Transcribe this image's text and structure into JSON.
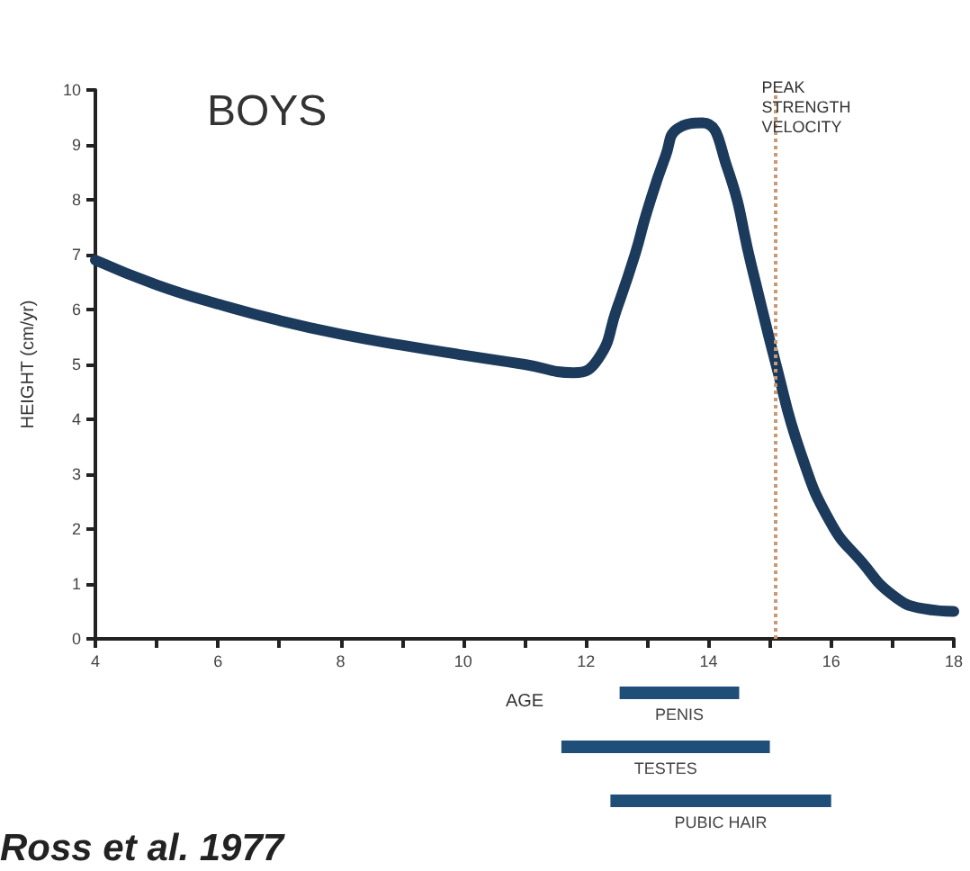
{
  "chart_data": [
    {
      "type": "line",
      "title": "BOYS",
      "xlabel": "AGE",
      "ylabel": "HEIGHT (cm/yr)",
      "x": [
        4,
        5,
        6,
        7,
        8,
        9,
        10,
        11,
        11.8,
        12.2,
        12.5,
        12.8,
        13,
        13.3,
        13.5,
        13.9,
        14.3,
        14.7,
        15.1,
        15.5,
        16,
        16.5,
        17,
        17.5,
        18
      ],
      "series": [
        {
          "color": "#1b3a5c",
          "values": [
            6.9,
            6.45,
            6.1,
            5.8,
            5.55,
            5.35,
            5.17,
            5.0,
            4.85,
            5.1,
            6.0,
            7.0,
            7.8,
            8.8,
            9.3,
            9.4,
            8.6,
            6.8,
            5.0,
            3.4,
            2.1,
            1.4,
            0.8,
            0.55,
            0.5
          ]
        }
      ],
      "xlim": [
        4,
        18
      ],
      "xticks": [
        4,
        {
          "value": 5,
          "label": null
        },
        6,
        {
          "value": 7,
          "label": null
        },
        8,
        {
          "value": 9,
          "label": null
        },
        10,
        {
          "value": 11,
          "label": null
        },
        12,
        {
          "value": 13,
          "label": null
        },
        14,
        {
          "value": 15,
          "label": null
        },
        16,
        {
          "value": 17,
          "label": null
        },
        18
      ],
      "ylim": [
        0,
        10
      ],
      "yticks": [
        0,
        1,
        2,
        3,
        4,
        5,
        6,
        7,
        8,
        9,
        10
      ],
      "grid": false,
      "ref_lines": [
        {
          "axis": "x",
          "value": 15.1,
          "label": "PEAK\nSTRENGTH\nVELOCITY",
          "color": "#c89a78",
          "line_style": "dotted"
        }
      ]
    },
    {
      "type": "bar",
      "orientation": "horizontal",
      "categories": [
        "PENIS",
        "TESTES",
        "PUBIC HAIR"
      ],
      "base": [
        12.55,
        11.6,
        12.4
      ],
      "values": [
        1.95,
        3.4,
        3.6
      ],
      "color": "#1f4e79",
      "xlim": [
        4,
        18
      ],
      "tick_labels": false,
      "grid": false,
      "annotations": [
        "Ross et al. 1977"
      ]
    }
  ]
}
